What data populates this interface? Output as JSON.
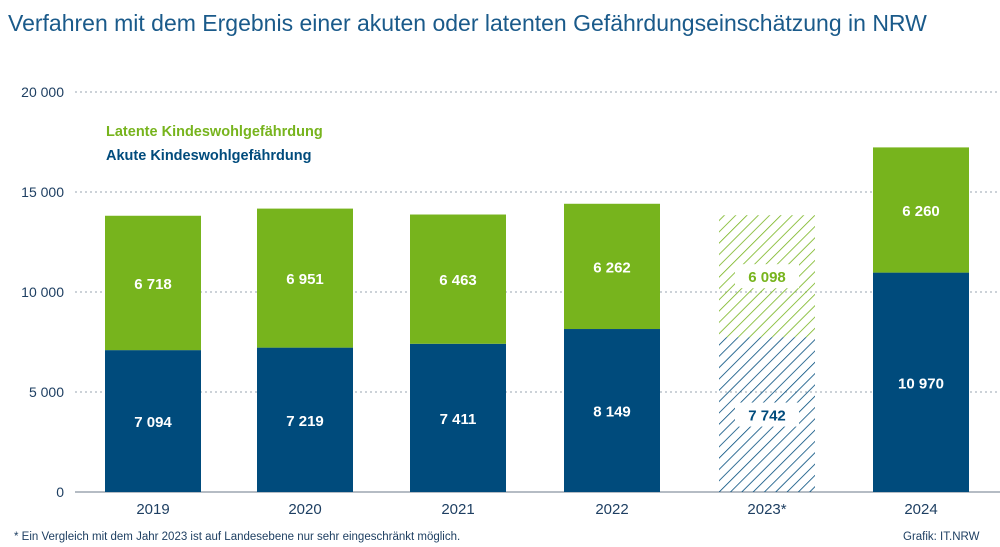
{
  "header": {
    "title": "Verfahren mit dem Ergebnis einer akuten oder latenten Gefährdungseinschätzung in NRW"
  },
  "footer": {
    "footnote": "*  Ein Vergleich mit dem Jahr 2023 ist auf Landesebene nur sehr eingeschränkt möglich.",
    "credit": "Grafik: IT.NRW"
  },
  "chart_data": {
    "type": "bar",
    "stacked": true,
    "categories": [
      "2019",
      "2020",
      "2021",
      "2022",
      "2023*",
      "2024"
    ],
    "series": [
      {
        "name": "Akute Kindeswohlgefährdung",
        "values": [
          7094,
          7219,
          7411,
          8149,
          7742,
          10970
        ],
        "labels": [
          "7 094",
          "7 219",
          "7 411",
          "8 149",
          "7 742",
          "10 970"
        ],
        "color": "#004b7c"
      },
      {
        "name": "Latente Kindeswohlgefährdung",
        "values": [
          6718,
          6951,
          6463,
          6262,
          6098,
          6260
        ],
        "labels": [
          "6 718",
          "6 951",
          "6 463",
          "6 262",
          "6 098",
          "6 260"
        ],
        "color": "#77b41d"
      }
    ],
    "hatched_categories": [
      "2023*"
    ],
    "ylim": [
      0,
      20000
    ],
    "yticks": [
      0,
      5000,
      10000,
      15000,
      20000
    ],
    "ytick_labels": [
      "0",
      "5 000",
      "10 000",
      "15 000",
      "20 000"
    ],
    "grid": true,
    "legend_position": "top-left"
  }
}
